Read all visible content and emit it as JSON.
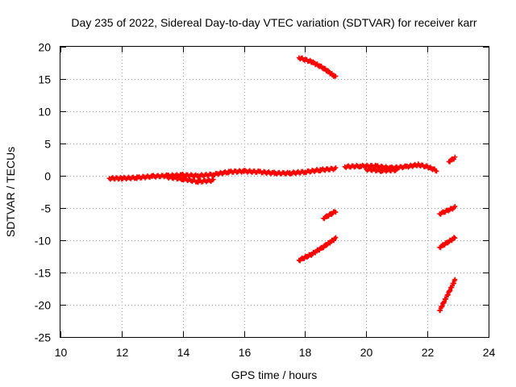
{
  "chart_data": {
    "type": "scatter",
    "title": "Day 235 of 2022, Sidereal Day-to-day VTEC variation (SDTVAR) for receiver karr",
    "xlabel": "GPS time / hours",
    "ylabel": "SDTVAR / TECUs",
    "xlim": [
      10,
      24
    ],
    "ylim": [
      -25,
      20
    ],
    "xticks": [
      10,
      12,
      14,
      16,
      18,
      20,
      22,
      24
    ],
    "yticks": [
      -25,
      -20,
      -15,
      -10,
      -5,
      0,
      5,
      10,
      15,
      20
    ],
    "grid": true,
    "legend": "none",
    "colors": {
      "points": "#ff0000",
      "grid": "#a0a0a0",
      "frame": "#000000"
    },
    "series": [
      {
        "segments": [
          {
            "x": [
              11.6,
              12.0,
              12.5,
              13.0,
              13.5,
              14.0,
              14.5,
              15.0,
              15.5,
              16.0,
              16.5,
              17.0,
              17.5,
              18.0,
              18.5,
              19.0
            ],
            "y": [
              -0.4,
              -0.4,
              -0.3,
              -0.1,
              0.0,
              0.1,
              0.0,
              0.2,
              0.6,
              0.7,
              0.6,
              0.4,
              0.4,
              0.6,
              0.9,
              1.1
            ]
          },
          {
            "x": [
              13.5,
              14.0,
              14.5,
              15.0
            ],
            "y": [
              -0.2,
              -0.5,
              -0.9,
              -0.7
            ]
          },
          {
            "x": [
              19.3,
              19.8,
              20.3,
              20.8,
              21.3,
              21.7,
              22.0,
              22.3
            ],
            "y": [
              1.4,
              1.5,
              1.5,
              1.2,
              1.4,
              1.7,
              1.4,
              0.8
            ]
          },
          {
            "x": [
              20.0,
              20.5,
              21.0
            ],
            "y": [
              1.0,
              0.8,
              0.9
            ]
          },
          {
            "x": [
              17.8,
              18.2,
              18.6,
              19.0
            ],
            "y": [
              18.3,
              17.7,
              16.7,
              15.3
            ]
          },
          {
            "x": [
              17.8,
              18.2,
              18.6,
              19.0
            ],
            "y": [
              -13.1,
              -12.2,
              -11.0,
              -9.7
            ]
          },
          {
            "x": [
              18.6,
              19.0
            ],
            "y": [
              -6.6,
              -5.5
            ]
          },
          {
            "x": [
              22.4,
              22.9
            ],
            "y": [
              -11.1,
              -9.6
            ]
          },
          {
            "x": [
              22.4,
              22.9
            ],
            "y": [
              -5.9,
              -4.9
            ]
          },
          {
            "x": [
              22.4,
              22.9
            ],
            "y": [
              -20.9,
              -16.2
            ]
          },
          {
            "x": [
              22.7,
              22.9
            ],
            "y": [
              2.2,
              2.8
            ]
          }
        ]
      }
    ]
  }
}
